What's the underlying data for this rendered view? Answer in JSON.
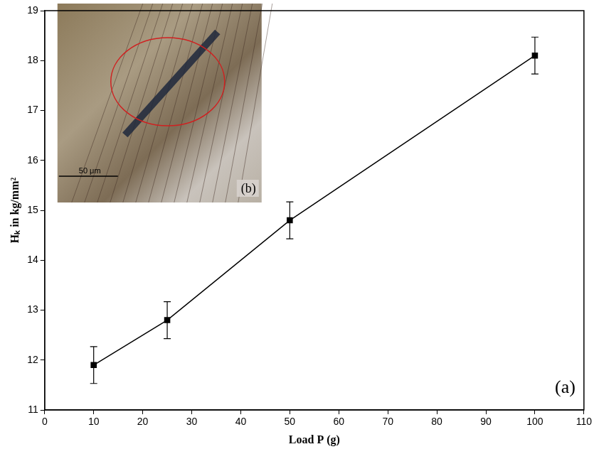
{
  "chart_data": {
    "type": "line",
    "x_label": "Load P (g)",
    "y_label": "Hₖ in kg/mm²",
    "x": [
      10,
      25,
      50,
      100
    ],
    "values": [
      11.9,
      12.8,
      14.8,
      18.1
    ],
    "errors": [
      0.37,
      0.37,
      0.37,
      0.37
    ],
    "color": "#000000",
    "marker": "square",
    "line_style": "solid",
    "xlim": [
      0,
      110
    ],
    "xticks": [
      0,
      10,
      20,
      30,
      40,
      50,
      60,
      70,
      80,
      90,
      100,
      110
    ],
    "ylim": [
      11,
      19
    ],
    "yticks": [
      11,
      12,
      13,
      14,
      15,
      16,
      17,
      18,
      19
    ],
    "grid": false,
    "annotations": [
      "(a)",
      "(b)",
      "50 μm"
    ]
  }
}
